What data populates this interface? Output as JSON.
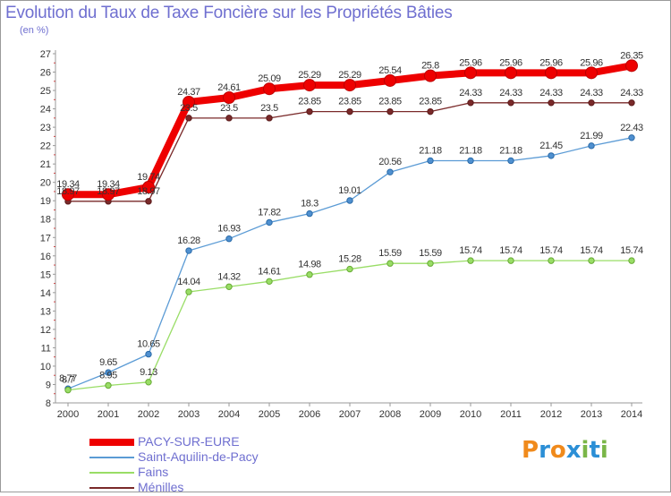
{
  "chart_data": {
    "type": "line",
    "title": "Evolution du Taux de Taxe Foncière sur les Propriétés Bâties",
    "subtitle": "(en %)",
    "x": [
      "2000",
      "2001",
      "2002",
      "2003",
      "2004",
      "2005",
      "2006",
      "2007",
      "2008",
      "2009",
      "2010",
      "2011",
      "2012",
      "2013",
      "2014"
    ],
    "ylim": [
      8,
      27
    ],
    "yticks": [
      8,
      9,
      10,
      11,
      12,
      13,
      14,
      15,
      16,
      17,
      18,
      19,
      20,
      21,
      22,
      23,
      24,
      25,
      26,
      27
    ],
    "grid": false,
    "legend_position": "bottom-left",
    "series": [
      {
        "name": "PACY-SUR-EURE",
        "color": "#ee0000",
        "values": [
          19.34,
          19.34,
          19.74,
          24.37,
          24.61,
          25.09,
          25.29,
          25.29,
          25.54,
          25.8,
          25.96,
          25.96,
          25.96,
          25.96,
          26.35
        ],
        "labels": [
          "19.34",
          "19.34",
          "19.74",
          "24.37",
          "24.61",
          "25.09",
          "25.29",
          "25.29",
          "25.54",
          "25.8",
          "25.96",
          "25.96",
          "25.96",
          "25.96",
          "26.35"
        ]
      },
      {
        "name": "Saint-Aquilin-de-Pacy",
        "color": "#5b9bd5",
        "values": [
          8.77,
          9.65,
          10.65,
          16.28,
          16.93,
          17.82,
          18.3,
          19.01,
          20.56,
          21.18,
          21.18,
          21.18,
          21.45,
          21.99,
          22.43
        ],
        "labels": [
          "8.77",
          "9.65",
          "10.65",
          "16.28",
          "16.93",
          "17.82",
          "18.3",
          "19.01",
          "20.56",
          "21.18",
          "21.18",
          "21.18",
          "21.45",
          "21.99",
          "22.43"
        ]
      },
      {
        "name": "Fains",
        "color": "#99dd66",
        "values": [
          8.7,
          8.95,
          9.13,
          14.04,
          14.32,
          14.61,
          14.98,
          15.28,
          15.59,
          15.59,
          15.74,
          15.74,
          15.74,
          15.74,
          15.74
        ],
        "labels": [
          "8.7",
          "8.95",
          "9.13",
          "14.04",
          "14.32",
          "14.61",
          "14.98",
          "15.28",
          "15.59",
          "15.59",
          "15.74",
          "15.74",
          "15.74",
          "15.74",
          "15.74"
        ]
      },
      {
        "name": "Ménilles",
        "color": "#7a2a2a",
        "values": [
          18.97,
          18.97,
          18.97,
          23.5,
          23.5,
          23.5,
          23.85,
          23.85,
          23.85,
          23.85,
          24.33,
          24.33,
          24.33,
          24.33,
          24.33
        ],
        "labels": [
          "18.97",
          "18.97",
          "18.97",
          "23.5",
          "23.5",
          "23.5",
          "23.85",
          "23.85",
          "23.85",
          "23.85",
          "24.33",
          "24.33",
          "24.33",
          "24.33",
          "24.33"
        ]
      }
    ]
  },
  "logo": {
    "text": "Proxiti",
    "colors": [
      "#f08a1c",
      "#2b8fd6",
      "#f08a1c",
      "#2b8fd6",
      "#7ab648",
      "#2b8fd6",
      "#7ab648"
    ]
  }
}
